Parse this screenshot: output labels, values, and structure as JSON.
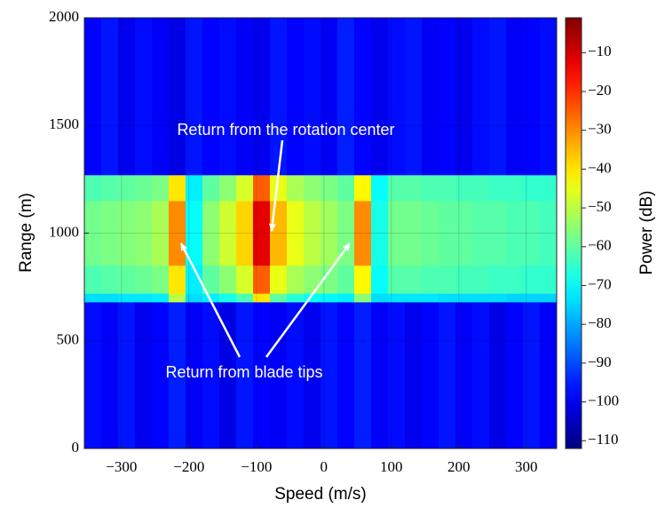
{
  "chart_data": {
    "type": "heatmap",
    "x_label": "Speed (m/s)",
    "y_label": "Range (m)",
    "colorbar_label": "Power (dB)",
    "colormap": "jet",
    "xlim": [
      -355,
      345
    ],
    "ylim": [
      0,
      2000
    ],
    "clim": [
      -112,
      -1
    ],
    "xticks": [
      {
        "value": -300,
        "label": "−300"
      },
      {
        "value": -200,
        "label": "−200"
      },
      {
        "value": -100,
        "label": "−100"
      },
      0,
      100,
      200,
      300
    ],
    "yticks": [
      0,
      500,
      1000,
      1500,
      2000
    ],
    "cticks": [
      {
        "value": -10,
        "label": "−10"
      },
      {
        "value": -20,
        "label": "−20"
      },
      {
        "value": -30,
        "label": "−30"
      },
      {
        "value": -40,
        "label": "−40"
      },
      {
        "value": -50,
        "label": "−50"
      },
      {
        "value": -60,
        "label": "−60"
      },
      {
        "value": -70,
        "label": "−70"
      },
      {
        "value": -80,
        "label": "−80"
      },
      {
        "value": -90,
        "label": "−90"
      },
      {
        "value": -100,
        "label": "−100"
      },
      {
        "value": -110,
        "label": "−110"
      }
    ],
    "grid": true,
    "x_bins": [
      -355,
      -330,
      -305,
      -280,
      -255,
      -230,
      -205,
      -180,
      -155,
      -130,
      -105,
      -80,
      -55,
      -30,
      -5,
      20,
      45,
      70,
      95,
      120,
      145,
      170,
      195,
      220,
      245,
      270,
      295,
      320,
      345
    ],
    "y_bins": [
      0,
      680,
      720,
      850,
      1150,
      1270,
      2000
    ],
    "values": [
      [
        -97,
        -99,
        -96,
        -100,
        -98,
        -95,
        -99,
        -97,
        -101,
        -96,
        -98,
        -99,
        -97,
        -100,
        -96,
        -98,
        -95,
        -99,
        -97,
        -100,
        -98,
        -96,
        -99,
        -97,
        -101,
        -98,
        -96,
        -99
      ],
      [
        -74,
        -74,
        -73,
        -73,
        -72,
        -50,
        -74,
        -72,
        -68,
        -62,
        -40,
        -60,
        -66,
        -70,
        -71,
        -72,
        -55,
        -74,
        -73,
        -73,
        -73,
        -74,
        -74,
        -74,
        -74,
        -75,
        -75,
        -75
      ],
      [
        -62,
        -61,
        -60,
        -59,
        -57,
        -40,
        -72,
        -60,
        -55,
        -47,
        -25,
        -45,
        -52,
        -55,
        -57,
        -60,
        -42,
        -70,
        -61,
        -61,
        -62,
        -62,
        -63,
        -63,
        -64,
        -64,
        -65,
        -65
      ],
      [
        -58,
        -57,
        -56,
        -55,
        -52,
        -30,
        -70,
        -55,
        -48,
        -38,
        -12,
        -35,
        -45,
        -50,
        -53,
        -57,
        -30,
        -68,
        -58,
        -58,
        -59,
        -60,
        -60,
        -61,
        -61,
        -62,
        -62,
        -63
      ],
      [
        -62,
        -61,
        -60,
        -59,
        -57,
        -40,
        -72,
        -60,
        -55,
        -47,
        -25,
        -45,
        -52,
        -55,
        -57,
        -60,
        -42,
        -70,
        -61,
        -61,
        -62,
        -62,
        -63,
        -63,
        -64,
        -64,
        -65,
        -65
      ],
      [
        -98,
        -96,
        -100,
        -97,
        -99,
        -101,
        -96,
        -98,
        -97,
        -99,
        -100,
        -96,
        -98,
        -97,
        -99,
        -95,
        -98,
        -100,
        -97,
        -96,
        -99,
        -98,
        -100,
        -97,
        -96,
        -99,
        -98,
        -97
      ]
    ],
    "annotations": [
      "Return from the rotation center",
      "Return from blade tips"
    ]
  }
}
